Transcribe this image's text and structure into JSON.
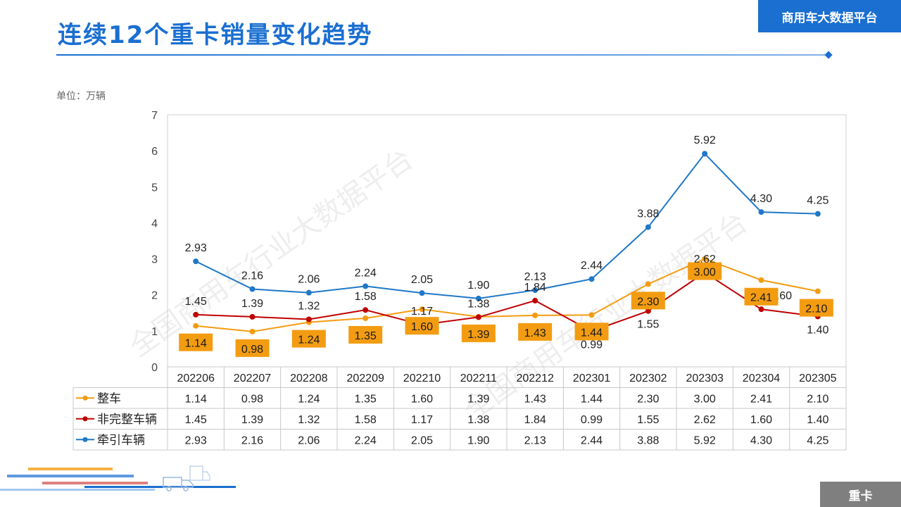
{
  "header": {
    "title": "连续12个重卡销量变化趋势",
    "brand": "商用车大数据平台",
    "unit": "单位：万辆",
    "watermark": "全国商用车行业大数据平台"
  },
  "footer": {
    "tag": "重卡"
  },
  "colors": {
    "primary": "#1a6fd1",
    "orange": "#f39c12",
    "red": "#c00000",
    "blue": "#1f78c8",
    "label_box": "#f39c12"
  },
  "chart_data": {
    "type": "line",
    "ylim": [
      0,
      7
    ],
    "yticks": [
      0,
      1,
      2,
      3,
      4,
      5,
      6,
      7
    ],
    "grid": false,
    "legend": "table-bottom",
    "categories": [
      "202206",
      "202207",
      "202208",
      "202209",
      "202210",
      "202211",
      "202212",
      "202301",
      "202302",
      "202303",
      "202304",
      "202305"
    ],
    "series": [
      {
        "name": "整车",
        "color": "#f39c12",
        "values": [
          1.14,
          0.98,
          1.24,
          1.35,
          1.6,
          1.39,
          1.43,
          1.44,
          2.3,
          3.0,
          2.41,
          2.1
        ],
        "labels": [
          "1.14",
          "0.98",
          "1.24",
          "1.35",
          "1.60",
          "1.39",
          "1.43",
          "1.44",
          "2.30",
          "3.00",
          "2.41",
          "2.10"
        ]
      },
      {
        "name": "非完整车辆",
        "color": "#c00000",
        "values": [
          1.45,
          1.39,
          1.32,
          1.58,
          1.17,
          1.38,
          1.84,
          0.99,
          1.55,
          2.62,
          1.6,
          1.4
        ],
        "labels": [
          "1.45",
          "1.39",
          "1.32",
          "1.58",
          "1.17",
          "1.38",
          "1.84",
          "0.99",
          "1.55",
          "2.62",
          "1.60",
          "1.40"
        ]
      },
      {
        "name": "牵引车辆",
        "color": "#1f78c8",
        "values": [
          2.93,
          2.16,
          2.06,
          2.24,
          2.05,
          1.9,
          2.13,
          2.44,
          3.88,
          5.92,
          4.3,
          4.25
        ],
        "labels": [
          "2.93",
          "2.16",
          "2.06",
          "2.24",
          "2.05",
          "1.90",
          "2.13",
          "2.44",
          "3.88",
          "5.92",
          "4.30",
          "4.25"
        ]
      }
    ]
  }
}
